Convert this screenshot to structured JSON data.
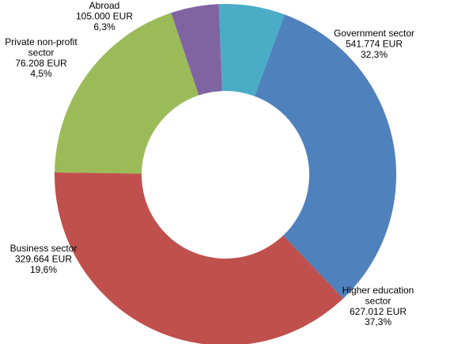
{
  "chart_data": {
    "type": "pie",
    "variant": "donut",
    "title": "",
    "legend": "none",
    "currency": "EUR",
    "series": [
      {
        "category": "Government sector",
        "value": 541774,
        "percent": 32.3,
        "color": "#4F81BD",
        "label_lines": [
          "Government sector",
          "541.774 EUR",
          "32,3%"
        ]
      },
      {
        "category": "Higher education sector",
        "value": 627012,
        "percent": 37.3,
        "color": "#C0504D",
        "label_lines": [
          "Higher education",
          "sector",
          "627.012 EUR",
          "37,3%"
        ]
      },
      {
        "category": "Business sector",
        "value": 329664,
        "percent": 19.6,
        "color": "#9BBB59",
        "label_lines": [
          "Business sector",
          "329.664 EUR",
          "19,6%"
        ]
      },
      {
        "category": "Private non-profit sector",
        "value": 76208,
        "percent": 4.5,
        "color": "#8064A2",
        "label_lines": [
          "Private non-profit",
          "sector",
          "76.208 EUR",
          "4,5%"
        ]
      },
      {
        "category": "Abroad",
        "value": 105000,
        "percent": 6.3,
        "color": "#4BACC6",
        "label_lines": [
          "Abroad",
          "105.000 EUR",
          "6,3%"
        ]
      }
    ]
  }
}
